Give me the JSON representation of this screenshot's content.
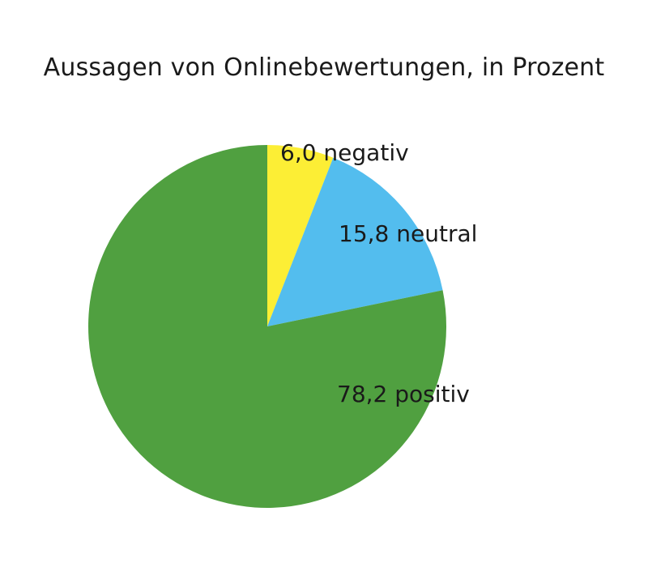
{
  "chart_data": {
    "type": "pie",
    "title": "Aussagen von Onlinebewertungen, in Prozent",
    "start": "12 o'clock",
    "direction": "clockwise",
    "slices": [
      {
        "label": "negativ",
        "value": 6.0,
        "value_text": "6,0",
        "color": "#fcee35"
      },
      {
        "label": "neutral",
        "value": 15.8,
        "value_text": "15,8",
        "color": "#53bdee"
      },
      {
        "label": "positiv",
        "value": 78.2,
        "value_text": "78,2",
        "color": "#50a040"
      }
    ]
  }
}
